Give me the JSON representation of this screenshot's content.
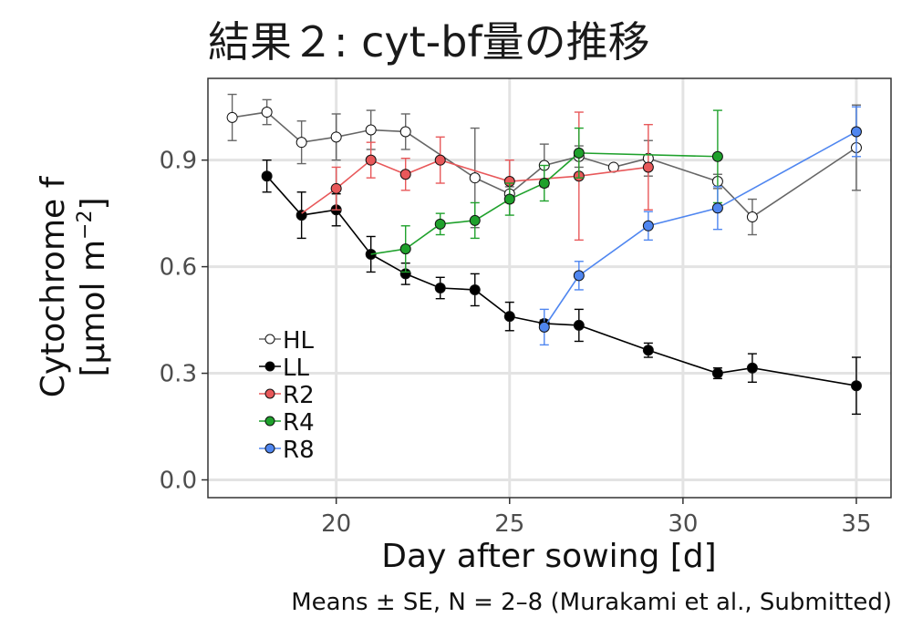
{
  "title": "結果２: cyt-bf量の推移",
  "caption": "Means ± SE, N = 2–8 (Murakami et al., Submitted)",
  "chart_data": {
    "type": "line",
    "xlabel": "Day after sowing [d]",
    "ylabel_line1": "Cytochrome f",
    "ylabel_line2": "[μmol m",
    "ylabel_sup": "−2",
    "ylabel_end": "]",
    "xlim": [
      16.3,
      36.0
    ],
    "ylim": [
      -0.05,
      1.13
    ],
    "xticks": [
      20,
      25,
      30,
      35
    ],
    "xtick_labels": [
      "20",
      "25",
      "30",
      "35"
    ],
    "yticks": [
      0.0,
      0.3,
      0.6,
      0.9
    ],
    "ytick_labels": [
      "0.0",
      "0.3",
      "0.6",
      "0.9"
    ],
    "grid": true,
    "legend_position": "bottom-left (inside)",
    "series": [
      {
        "name": "HL",
        "line": "#666666",
        "fill": "#ffffff",
        "x": [
          17,
          18,
          19,
          20,
          21,
          22,
          24,
          25,
          26,
          27,
          28,
          29,
          31,
          32,
          35
        ],
        "y": [
          1.02,
          1.035,
          0.95,
          0.965,
          0.985,
          0.98,
          0.85,
          0.805,
          0.885,
          0.91,
          0.88,
          0.905,
          0.84,
          0.74,
          0.935
        ],
        "err": [
          0.065,
          0.035,
          0.06,
          0.065,
          0.055,
          0.05,
          0.14,
          0.02,
          0.06,
          0.03,
          0.0,
          0.05,
          0.02,
          0.05,
          0.12
        ]
      },
      {
        "name": "LL",
        "line": "#000000",
        "fill": "#000000",
        "x": [
          18,
          19,
          20,
          21,
          22,
          23,
          24,
          25,
          26,
          27,
          29,
          31,
          32,
          35
        ],
        "y": [
          0.855,
          0.745,
          0.76,
          0.635,
          0.58,
          0.54,
          0.535,
          0.46,
          0.44,
          0.435,
          0.365,
          0.3,
          0.315,
          0.265
        ],
        "err": [
          0.045,
          0.065,
          0.045,
          0.05,
          0.03,
          0.03,
          0.045,
          0.04,
          0.01,
          0.045,
          0.02,
          0.015,
          0.04,
          0.08
        ]
      },
      {
        "name": "R2",
        "line": "#e8585a",
        "fill": "#e8585a",
        "x": [
          20,
          21,
          22,
          23,
          25,
          27,
          29
        ],
        "y": [
          0.82,
          0.9,
          0.86,
          0.9,
          0.84,
          0.855,
          0.88
        ],
        "err": [
          0.06,
          0.05,
          0.045,
          0.065,
          0.06,
          0.18,
          0.12
        ]
      },
      {
        "name": "R4",
        "line": "#1fa12c",
        "fill": "#1fa12c",
        "x": [
          22,
          23,
          24,
          25,
          26,
          27,
          31
        ],
        "y": [
          0.65,
          0.72,
          0.73,
          0.79,
          0.835,
          0.92,
          0.91
        ],
        "err": [
          0.065,
          0.03,
          0.05,
          0.045,
          0.05,
          0.07,
          0.13
        ]
      },
      {
        "name": "R8",
        "line": "#4f86f0",
        "fill": "#4f86f0",
        "x": [
          26,
          27,
          29,
          31,
          35
        ],
        "y": [
          0.43,
          0.575,
          0.715,
          0.765,
          0.98
        ],
        "err": [
          0.05,
          0.04,
          0.04,
          0.06,
          0.07
        ]
      }
    ],
    "series_origins": {
      "R2": [
        19,
        0.75
      ],
      "R4": [
        21,
        0.635
      ],
      "R8": [
        26,
        0.43
      ]
    }
  }
}
